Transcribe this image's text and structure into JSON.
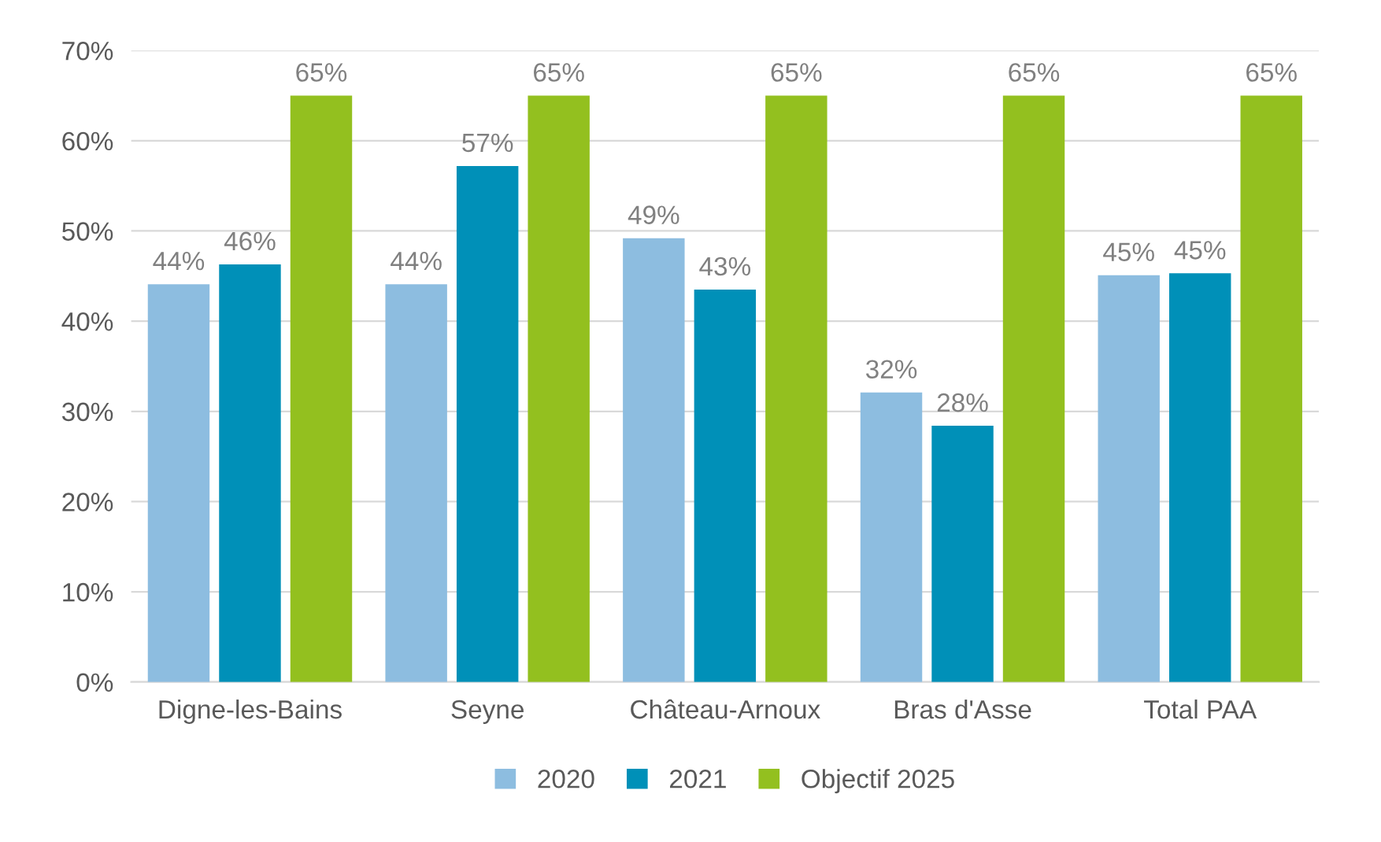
{
  "chart_data": {
    "type": "bar",
    "categories": [
      "Digne-les-Bains",
      "Seyne",
      "Château-Arnoux",
      "Bras d'Asse",
      "Total PAA"
    ],
    "series": [
      {
        "name": "2020",
        "color": "#8dbde0",
        "values": [
          44.1,
          44.1,
          49.2,
          32.1,
          45.1
        ],
        "value_labels": [
          "44%",
          "44%",
          "49%",
          "32%",
          "45%"
        ]
      },
      {
        "name": "2021",
        "color": "#0090b8",
        "values": [
          46.3,
          57.2,
          43.5,
          28.4,
          45.3
        ],
        "value_labels": [
          "46%",
          "57%",
          "43%",
          "28%",
          "45%"
        ]
      },
      {
        "name": "Objectif 2025",
        "color": "#93c01f",
        "values": [
          65,
          65,
          65,
          65,
          65
        ],
        "value_labels": [
          "65%",
          "65%",
          "65%",
          "65%",
          "65%"
        ]
      }
    ],
    "ylim": [
      0,
      70
    ],
    "yticks": [
      {
        "value": 0,
        "label": "0%"
      },
      {
        "value": 10,
        "label": "10%"
      },
      {
        "value": 20,
        "label": "20%"
      },
      {
        "value": 30,
        "label": "30%"
      },
      {
        "value": 40,
        "label": "40%"
      },
      {
        "value": 50,
        "label": "50%"
      },
      {
        "value": 60,
        "label": "60%"
      },
      {
        "value": 70,
        "label": "70%"
      }
    ],
    "grid": "y",
    "legend": "bottom"
  }
}
